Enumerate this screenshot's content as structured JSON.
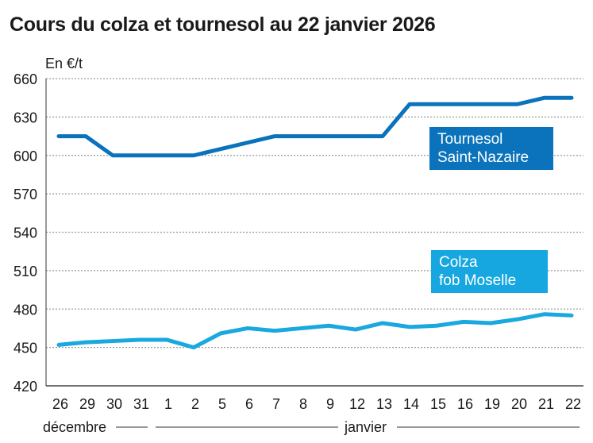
{
  "chart_data": {
    "type": "line",
    "title": "Cours du colza et tournesol au 22 janvier 2026",
    "ylabel": "En €/t",
    "ylim": [
      420,
      660
    ],
    "yticks": [
      420,
      450,
      480,
      510,
      540,
      570,
      600,
      630,
      660
    ],
    "grid": true,
    "categories": [
      "26",
      "29",
      "30",
      "31",
      "1",
      "2",
      "5",
      "6",
      "7",
      "8",
      "9",
      "12",
      "13",
      "14",
      "15",
      "16",
      "19",
      "20",
      "21",
      "22"
    ],
    "month_labels": [
      {
        "label": "décembre",
        "from": 0,
        "to": 3
      },
      {
        "label": "janvier",
        "from": 4,
        "to": 19
      }
    ],
    "series": [
      {
        "name": "Tournesol Saint-Nazaire",
        "color": "#0a73bb",
        "values": [
          615,
          615,
          600,
          600,
          600,
          600,
          605,
          610,
          615,
          615,
          615,
          615,
          615,
          640,
          640,
          640,
          640,
          640,
          645,
          645
        ]
      },
      {
        "name": "Colza fob Moselle",
        "color": "#19a8e0",
        "values": [
          452,
          454,
          455,
          456,
          456,
          450,
          461,
          465,
          463,
          465,
          467,
          464,
          469,
          466,
          467,
          470,
          469,
          472,
          476,
          475
        ]
      }
    ],
    "legend": [
      {
        "line1": "Tournesol",
        "line2": "Saint-Nazaire",
        "color": "#0a73bb"
      },
      {
        "line1": "Colza",
        "line2": "fob Moselle",
        "color": "#16a7e0"
      }
    ]
  }
}
